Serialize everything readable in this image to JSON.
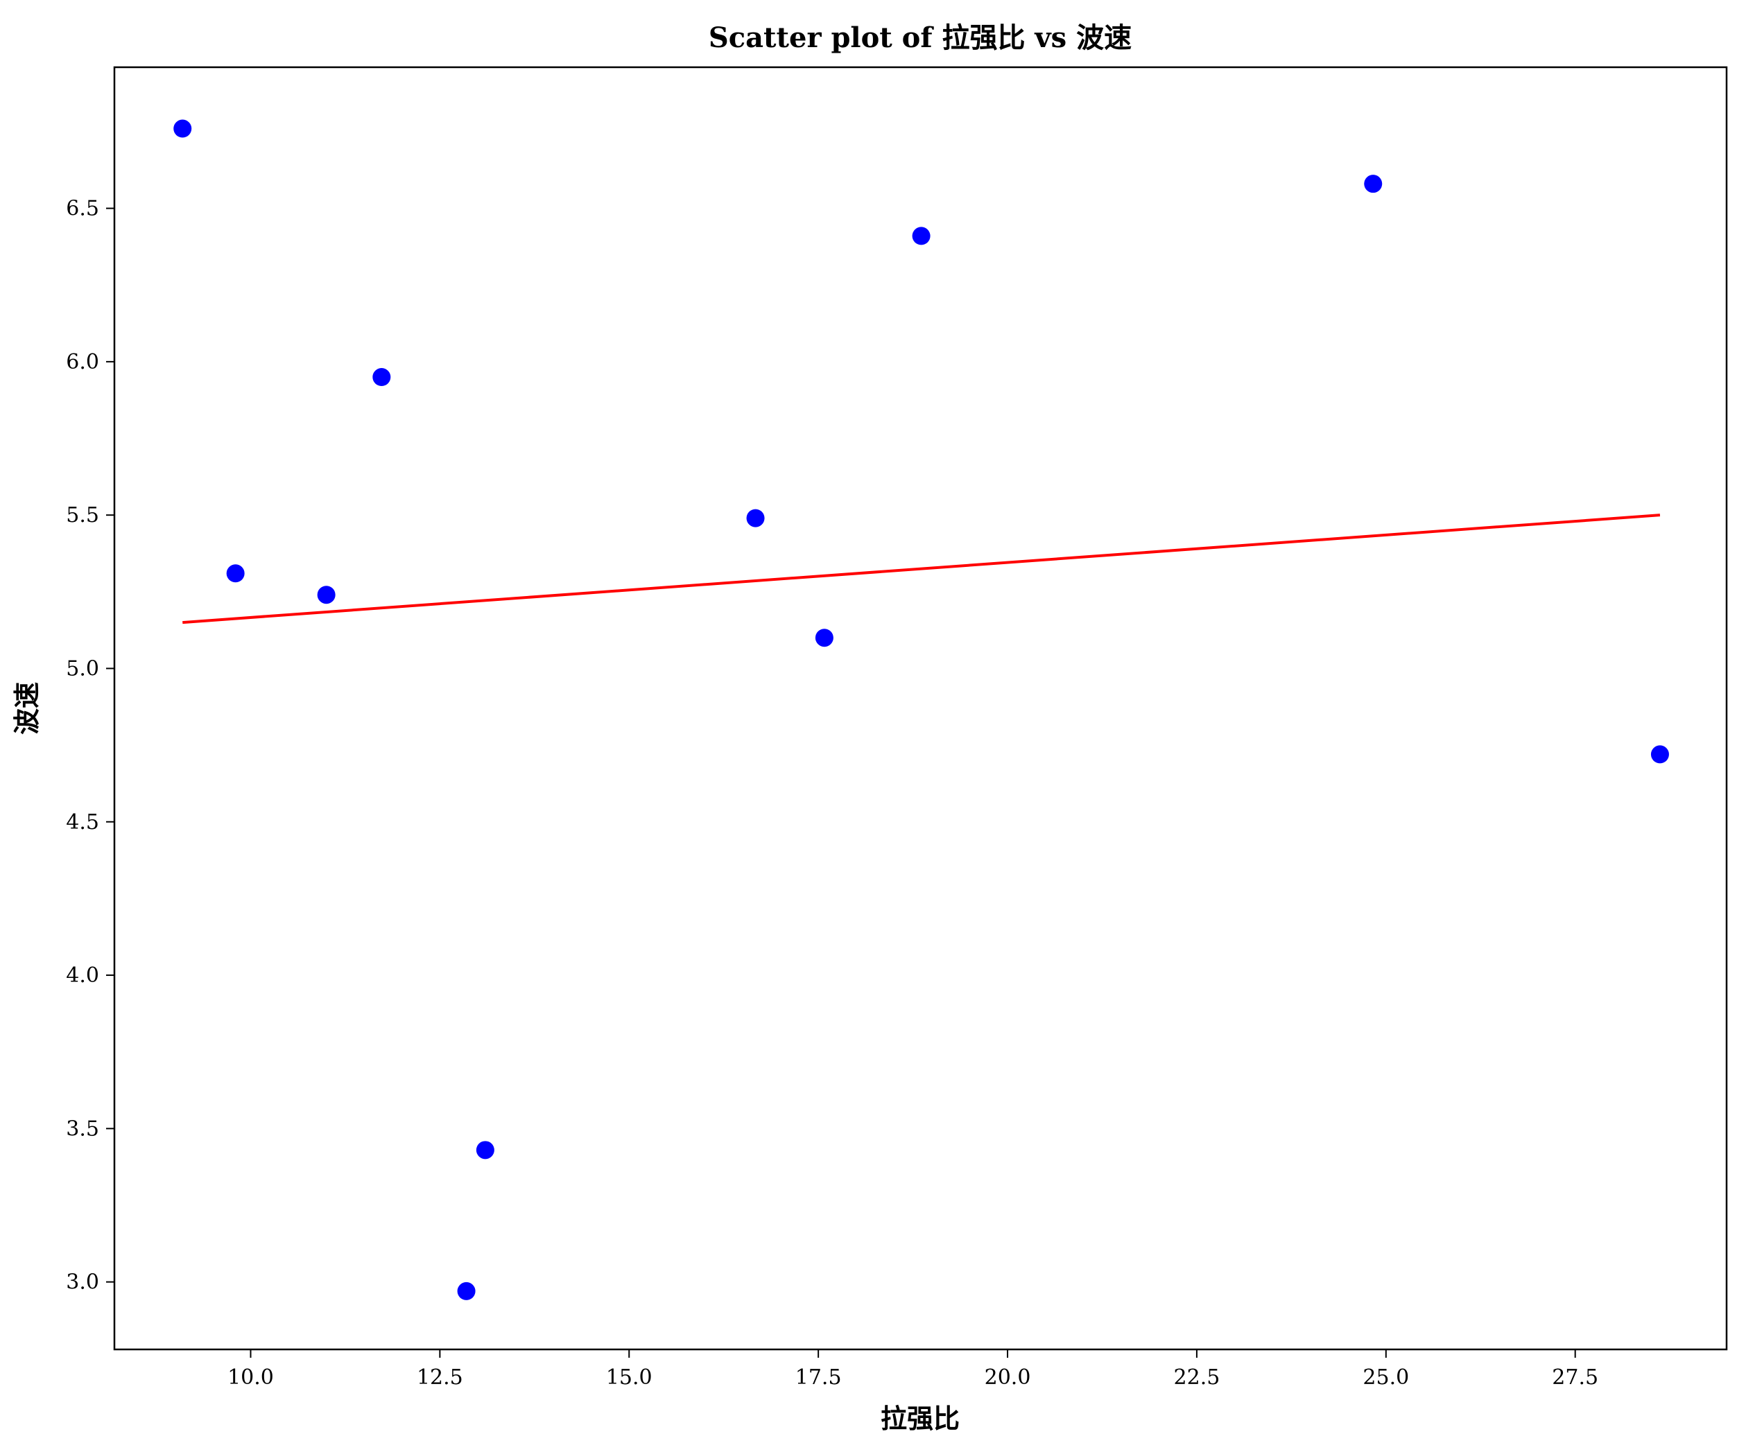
{
  "chart_data": {
    "type": "scatter",
    "title": "Scatter plot of 拉强比 vs 波速",
    "xlabel": "拉强比",
    "ylabel": "波速",
    "xlim": [
      8.2,
      29.5
    ],
    "ylim": [
      2.78,
      6.96
    ],
    "x_ticks": [
      10.0,
      12.5,
      15.0,
      17.5,
      20.0,
      22.5,
      25.0,
      27.5
    ],
    "x_tick_labels": [
      "10.0",
      "12.5",
      "15.0",
      "17.5",
      "20.0",
      "22.5",
      "25.0",
      "27.5"
    ],
    "y_ticks": [
      3.0,
      3.5,
      4.0,
      4.5,
      5.0,
      5.5,
      6.0,
      6.5
    ],
    "y_tick_labels": [
      "3.0",
      "3.5",
      "4.0",
      "4.5",
      "5.0",
      "5.5",
      "6.0",
      "6.5"
    ],
    "grid": false,
    "series": [
      {
        "kind": "scatter",
        "color": "#0000ff",
        "points": [
          {
            "x": 9.1,
            "y": 6.76
          },
          {
            "x": 9.8,
            "y": 5.31
          },
          {
            "x": 11.0,
            "y": 5.24
          },
          {
            "x": 11.73,
            "y": 5.95
          },
          {
            "x": 12.85,
            "y": 2.97
          },
          {
            "x": 13.1,
            "y": 3.43
          },
          {
            "x": 16.67,
            "y": 5.49
          },
          {
            "x": 17.58,
            "y": 5.1
          },
          {
            "x": 18.86,
            "y": 6.41
          },
          {
            "x": 24.83,
            "y": 6.58
          },
          {
            "x": 28.62,
            "y": 4.72
          }
        ]
      },
      {
        "kind": "line",
        "color": "#ff0000",
        "points": [
          {
            "x": 9.1,
            "y": 5.15
          },
          {
            "x": 28.62,
            "y": 5.5
          }
        ]
      }
    ]
  }
}
